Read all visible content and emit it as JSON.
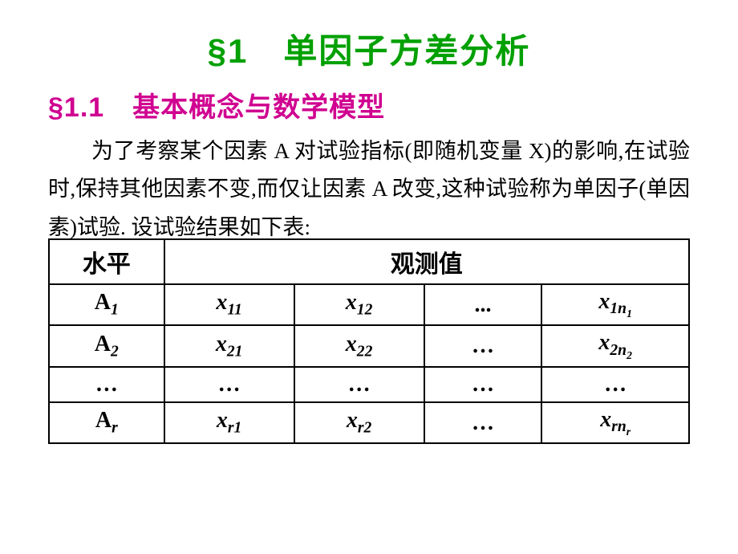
{
  "title": {
    "main": "§1　单因子方差分析",
    "sub": "§1.1　基本概念与数学模型",
    "main_color": "#00a000",
    "sub_color": "#d00090"
  },
  "paragraph": "为了考察某个因素 A 对试验指标(即随机变量 X)的影响,在试验时,保持其他因素不变,而仅让因素 A 改变,这种试验称为单因子(单因素)试验. 设试验结果如下表:",
  "table": {
    "header_level": "水平",
    "header_obs": "观测值",
    "rows": [
      {
        "level_pre": "A",
        "level_sub": "1",
        "c1_pre": "x",
        "c1_sub": "11",
        "c2_pre": "x",
        "c2_sub": "12",
        "c3": "...",
        "c4_pre": "x",
        "c4_sub": "1n",
        "c4_sub2": "1"
      },
      {
        "level_pre": "A",
        "level_sub": "2",
        "c1_pre": "x",
        "c1_sub": "21",
        "c2_pre": "x",
        "c2_sub": "22",
        "c3": "…",
        "c4_pre": "x",
        "c4_sub": "2n",
        "c4_sub2": "2"
      },
      {
        "level_pre": "…",
        "level_sub": "",
        "c1_pre": "…",
        "c1_sub": "",
        "c2_pre": "…",
        "c2_sub": "",
        "c3": "…",
        "c4_pre": "…",
        "c4_sub": "",
        "c4_sub2": ""
      },
      {
        "level_pre": "A",
        "level_sub": "r",
        "c1_pre": "x",
        "c1_sub": "r1",
        "c2_pre": "x",
        "c2_sub": "r2",
        "c3": "…",
        "c4_pre": "x",
        "c4_sub": "rn",
        "c4_sub2": "r"
      }
    ]
  },
  "colors": {
    "text": "#000000",
    "border": "#000000",
    "background": "#ffffff"
  }
}
